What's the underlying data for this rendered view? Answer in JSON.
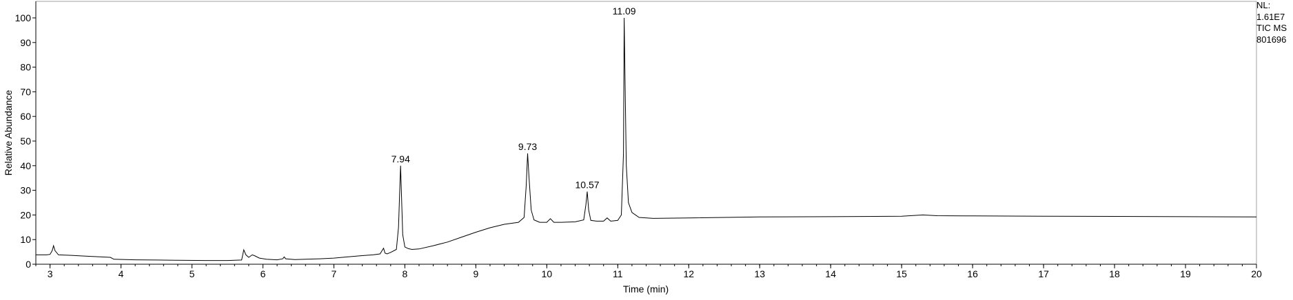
{
  "chart_data": {
    "type": "line",
    "title": "",
    "xlabel": "Time (min)",
    "ylabel": "Relative Abundance",
    "xlim": [
      2.8,
      20
    ],
    "ylim": [
      0,
      100
    ],
    "x_ticks": [
      3,
      4,
      5,
      6,
      7,
      8,
      9,
      10,
      11,
      12,
      13,
      14,
      15,
      16,
      17,
      18,
      19,
      20
    ],
    "y_ticks": [
      0,
      10,
      20,
      30,
      40,
      50,
      60,
      70,
      80,
      90,
      100
    ],
    "grid": false,
    "series": [
      {
        "x": [
          2.8,
          2.95,
          3.0,
          3.03,
          3.05,
          3.07,
          3.12,
          3.3,
          3.5,
          3.7,
          3.85,
          3.9,
          4.2,
          4.5,
          4.8,
          5.2,
          5.5,
          5.7,
          5.73,
          5.76,
          5.8,
          5.85,
          5.88,
          5.95,
          6.05,
          6.2,
          6.28,
          6.3,
          6.32,
          6.45,
          6.6,
          6.8,
          7.0,
          7.2,
          7.4,
          7.55,
          7.65,
          7.7,
          7.72,
          7.75,
          7.8,
          7.88,
          7.91,
          7.93,
          7.94,
          7.95,
          7.97,
          8.0,
          8.05,
          8.1,
          8.2,
          8.4,
          8.6,
          8.8,
          9.0,
          9.2,
          9.4,
          9.6,
          9.68,
          9.71,
          9.73,
          9.75,
          9.78,
          9.82,
          9.9,
          10.0,
          10.05,
          10.1,
          10.2,
          10.4,
          10.52,
          10.55,
          10.57,
          10.59,
          10.62,
          10.7,
          10.8,
          10.85,
          10.9,
          11.0,
          11.05,
          11.08,
          11.09,
          11.1,
          11.12,
          11.15,
          11.2,
          11.3,
          11.5,
          12.0,
          13.0,
          14.0,
          15.0,
          15.3,
          15.5,
          16.0,
          17.0,
          18.0,
          19.0,
          20.0
        ],
        "y": [
          3.8,
          3.8,
          4.0,
          5.5,
          7.5,
          5.5,
          3.8,
          3.6,
          3.3,
          3.0,
          2.8,
          2.0,
          1.8,
          1.7,
          1.6,
          1.5,
          1.5,
          1.7,
          5.8,
          3.8,
          2.8,
          3.8,
          3.5,
          2.5,
          2.0,
          1.8,
          2.2,
          3.0,
          2.2,
          1.9,
          2.0,
          2.2,
          2.5,
          3.0,
          3.5,
          3.8,
          4.2,
          6.5,
          4.5,
          4.2,
          4.8,
          6.0,
          15.0,
          32.0,
          40.0,
          30.0,
          12.0,
          7.0,
          6.3,
          6.0,
          6.2,
          7.5,
          9.0,
          11.0,
          13.0,
          14.8,
          16.2,
          17.0,
          19.0,
          32.0,
          45.0,
          35.0,
          22.0,
          18.0,
          17.0,
          17.0,
          18.5,
          17.0,
          17.0,
          17.2,
          18.0,
          24.0,
          29.5,
          22.0,
          17.8,
          17.5,
          17.5,
          18.8,
          17.5,
          17.8,
          20.0,
          45.0,
          100.0,
          80.0,
          40.0,
          25.0,
          21.0,
          19.0,
          18.6,
          18.8,
          19.2,
          19.3,
          19.5,
          20.0,
          19.7,
          19.6,
          19.5,
          19.4,
          19.3,
          19.2
        ]
      }
    ],
    "annotations": [
      {
        "x": 7.94,
        "y": 40,
        "label": "7.94"
      },
      {
        "x": 9.73,
        "y": 45,
        "label": "9.73"
      },
      {
        "x": 10.57,
        "y": 29.5,
        "label": "10.57"
      },
      {
        "x": 11.09,
        "y": 100,
        "label": "11.09"
      }
    ]
  },
  "side_info": [
    "NL:",
    "1.61E7",
    "TIC  MS",
    "801696"
  ],
  "colors": {
    "trace": "#000000",
    "axis": "#000000",
    "background": "#ffffff"
  }
}
